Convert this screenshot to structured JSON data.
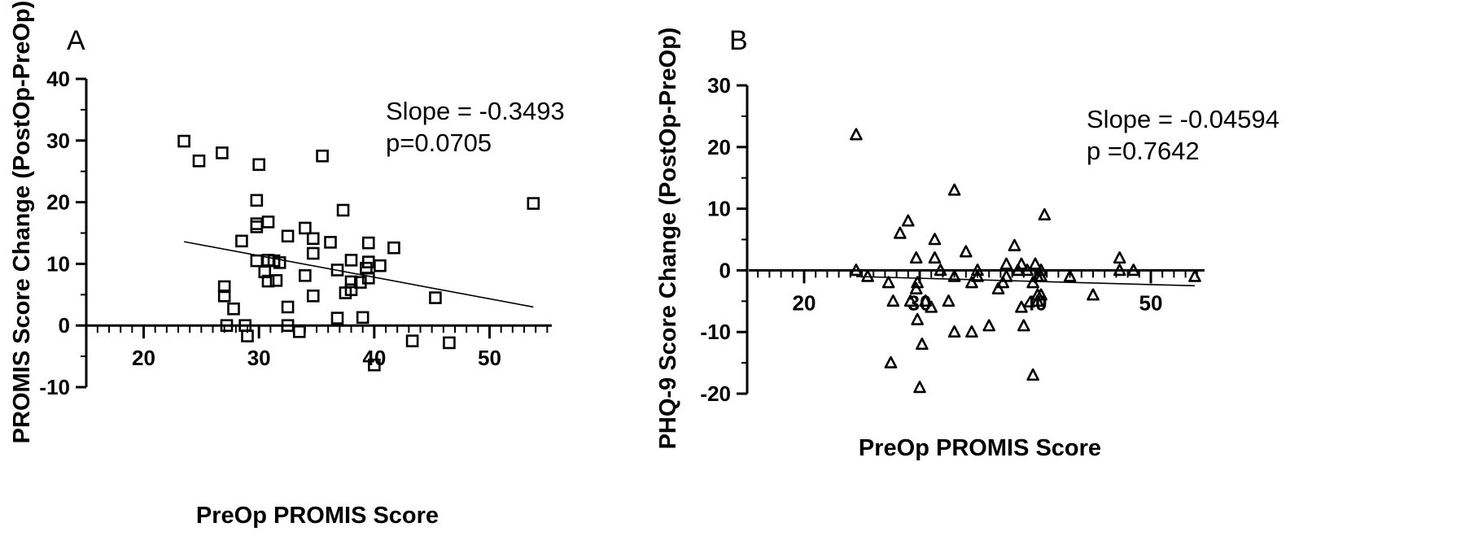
{
  "chart_data": [
    {
      "type": "scatter",
      "panel": "A",
      "title": "",
      "xlabel": "PreOp PROMIS Score",
      "ylabel": "PROMIS Score Change (PostOp-PreOp)",
      "xlim": [
        15,
        55
      ],
      "ylim": [
        -10,
        40
      ],
      "xticks": [
        20,
        30,
        40,
        50
      ],
      "yticks": [
        -10,
        0,
        10,
        20,
        30,
        40
      ],
      "marker": "square",
      "annotations": [
        "Slope = -0.3493",
        "p=0.0705"
      ],
      "regression": {
        "x": [
          23.5,
          53.8
        ],
        "y": [
          13.6,
          3.0
        ]
      },
      "points": [
        {
          "x": 23.5,
          "y": 29.9
        },
        {
          "x": 24.8,
          "y": 26.7
        },
        {
          "x": 26.8,
          "y": 28.0
        },
        {
          "x": 27.0,
          "y": 6.3
        },
        {
          "x": 27.0,
          "y": 4.8
        },
        {
          "x": 27.2,
          "y": 0.0
        },
        {
          "x": 27.8,
          "y": 2.7
        },
        {
          "x": 28.5,
          "y": 13.7
        },
        {
          "x": 28.8,
          "y": 0.0
        },
        {
          "x": 29.0,
          "y": -1.7
        },
        {
          "x": 29.8,
          "y": 20.3
        },
        {
          "x": 29.8,
          "y": 16.5
        },
        {
          "x": 29.8,
          "y": 16.0
        },
        {
          "x": 29.8,
          "y": 10.5
        },
        {
          "x": 30.0,
          "y": 26.1
        },
        {
          "x": 30.5,
          "y": 8.7
        },
        {
          "x": 30.8,
          "y": 16.8
        },
        {
          "x": 30.8,
          "y": 10.6
        },
        {
          "x": 30.8,
          "y": 7.2
        },
        {
          "x": 31.3,
          "y": 10.5
        },
        {
          "x": 31.5,
          "y": 7.3
        },
        {
          "x": 31.8,
          "y": 10.2
        },
        {
          "x": 32.5,
          "y": 14.5
        },
        {
          "x": 32.5,
          "y": 3.0
        },
        {
          "x": 32.5,
          "y": 0.0
        },
        {
          "x": 33.5,
          "y": -1.0
        },
        {
          "x": 34.0,
          "y": 15.8
        },
        {
          "x": 34.0,
          "y": 8.1
        },
        {
          "x": 34.7,
          "y": 14.1
        },
        {
          "x": 34.7,
          "y": 11.7
        },
        {
          "x": 34.7,
          "y": 4.8
        },
        {
          "x": 35.5,
          "y": 27.5
        },
        {
          "x": 36.2,
          "y": 13.5
        },
        {
          "x": 36.8,
          "y": 9.0
        },
        {
          "x": 36.8,
          "y": 1.2
        },
        {
          "x": 37.3,
          "y": 18.7
        },
        {
          "x": 37.5,
          "y": 5.3
        },
        {
          "x": 38.0,
          "y": 10.6
        },
        {
          "x": 38.0,
          "y": 7.1
        },
        {
          "x": 38.0,
          "y": 5.8
        },
        {
          "x": 38.8,
          "y": 7.0
        },
        {
          "x": 39.0,
          "y": 1.3
        },
        {
          "x": 39.3,
          "y": 9.3
        },
        {
          "x": 39.5,
          "y": 13.4
        },
        {
          "x": 39.5,
          "y": 10.3
        },
        {
          "x": 39.5,
          "y": 7.7
        },
        {
          "x": 40.0,
          "y": -6.4
        },
        {
          "x": 40.5,
          "y": 9.7
        },
        {
          "x": 41.7,
          "y": 12.6
        },
        {
          "x": 43.3,
          "y": -2.5
        },
        {
          "x": 45.3,
          "y": 4.5
        },
        {
          "x": 46.5,
          "y": -2.8
        },
        {
          "x": 53.8,
          "y": 19.8
        }
      ]
    },
    {
      "type": "scatter",
      "panel": "B",
      "title": "",
      "xlabel": "PreOp PROMIS Score",
      "ylabel": "PHQ-9 Score Change (PostOp-PreOp)",
      "xlim": [
        15,
        55
      ],
      "ylim": [
        -20,
        30
      ],
      "xticks": [
        20,
        30,
        40,
        50
      ],
      "yticks": [
        -20,
        -10,
        0,
        10,
        20,
        30
      ],
      "marker": "triangle",
      "annotations": [
        "Slope = -0.04594",
        "p =0.7642"
      ],
      "regression": {
        "x": [
          24.5,
          53.8
        ],
        "y": [
          -1.0,
          -2.5
        ]
      },
      "points": [
        {
          "x": 24.5,
          "y": 22.0
        },
        {
          "x": 24.5,
          "y": 0.0
        },
        {
          "x": 25.5,
          "y": -1.0
        },
        {
          "x": 27.3,
          "y": -2.0
        },
        {
          "x": 27.5,
          "y": -15.0
        },
        {
          "x": 27.7,
          "y": -5.0
        },
        {
          "x": 28.3,
          "y": 6.0
        },
        {
          "x": 29.0,
          "y": 8.0
        },
        {
          "x": 29.2,
          "y": -5.0
        },
        {
          "x": 29.7,
          "y": -3.0
        },
        {
          "x": 29.7,
          "y": 2.0
        },
        {
          "x": 29.8,
          "y": -2.0
        },
        {
          "x": 29.8,
          "y": -8.0
        },
        {
          "x": 30.0,
          "y": -19.0
        },
        {
          "x": 30.2,
          "y": -12.0
        },
        {
          "x": 30.5,
          "y": -5.0
        },
        {
          "x": 31.0,
          "y": -6.0
        },
        {
          "x": 31.3,
          "y": 5.0
        },
        {
          "x": 31.3,
          "y": 2.0
        },
        {
          "x": 31.8,
          "y": 0.0
        },
        {
          "x": 32.5,
          "y": -5.0
        },
        {
          "x": 33.0,
          "y": -10.0
        },
        {
          "x": 33.0,
          "y": -1.0
        },
        {
          "x": 33.0,
          "y": 13.0
        },
        {
          "x": 34.0,
          "y": 3.0
        },
        {
          "x": 34.5,
          "y": -10.0
        },
        {
          "x": 34.5,
          "y": -2.0
        },
        {
          "x": 35.0,
          "y": 0.0
        },
        {
          "x": 35.0,
          "y": -1.0
        },
        {
          "x": 36.0,
          "y": -9.0
        },
        {
          "x": 36.8,
          "y": -3.0
        },
        {
          "x": 37.2,
          "y": -2.0
        },
        {
          "x": 37.5,
          "y": 1.0
        },
        {
          "x": 37.5,
          "y": -1.0
        },
        {
          "x": 38.2,
          "y": 4.0
        },
        {
          "x": 38.5,
          "y": 0.0
        },
        {
          "x": 38.8,
          "y": 1.0
        },
        {
          "x": 38.8,
          "y": -6.0
        },
        {
          "x": 39.0,
          "y": -9.0
        },
        {
          "x": 39.3,
          "y": 0.0
        },
        {
          "x": 39.8,
          "y": -17.0
        },
        {
          "x": 39.8,
          "y": -2.0
        },
        {
          "x": 40.0,
          "y": 1.0
        },
        {
          "x": 40.2,
          "y": -4.0
        },
        {
          "x": 40.2,
          "y": -5.0
        },
        {
          "x": 40.2,
          "y": -1.0
        },
        {
          "x": 40.5,
          "y": -4.0
        },
        {
          "x": 40.5,
          "y": 0.0
        },
        {
          "x": 40.5,
          "y": -1.0
        },
        {
          "x": 40.8,
          "y": 9.0
        },
        {
          "x": 43.0,
          "y": -1.0
        },
        {
          "x": 45.0,
          "y": -4.0
        },
        {
          "x": 47.3,
          "y": 2.0
        },
        {
          "x": 47.3,
          "y": 0.0
        },
        {
          "x": 48.5,
          "y": 0.0
        },
        {
          "x": 53.8,
          "y": -1.0
        }
      ]
    }
  ]
}
